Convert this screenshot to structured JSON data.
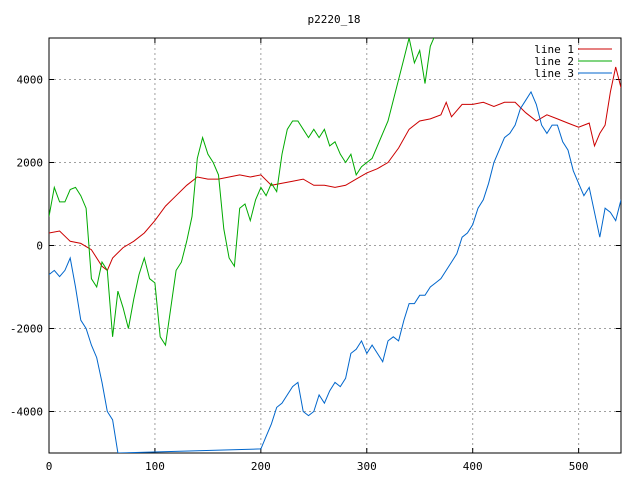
{
  "chart_data": {
    "type": "line",
    "title": "p2220_18",
    "xlabel": "",
    "ylabel": "",
    "xlim": [
      0,
      540
    ],
    "ylim": [
      -5000,
      5000
    ],
    "xticks": [
      0,
      100,
      200,
      300,
      400,
      500
    ],
    "yticks": [
      -4000,
      -2000,
      0,
      2000,
      4000
    ],
    "grid": true,
    "legend_position": "top-right",
    "series": [
      {
        "name": "line 1",
        "color": "#cc0000",
        "points": [
          [
            0,
            300
          ],
          [
            10,
            350
          ],
          [
            20,
            100
          ],
          [
            30,
            50
          ],
          [
            40,
            -100
          ],
          [
            50,
            -500
          ],
          [
            55,
            -600
          ],
          [
            60,
            -300
          ],
          [
            70,
            -50
          ],
          [
            80,
            100
          ],
          [
            90,
            300
          ],
          [
            100,
            600
          ],
          [
            110,
            950
          ],
          [
            120,
            1200
          ],
          [
            130,
            1450
          ],
          [
            140,
            1650
          ],
          [
            150,
            1600
          ],
          [
            160,
            1600
          ],
          [
            170,
            1650
          ],
          [
            180,
            1700
          ],
          [
            190,
            1650
          ],
          [
            200,
            1700
          ],
          [
            210,
            1450
          ],
          [
            220,
            1500
          ],
          [
            230,
            1550
          ],
          [
            240,
            1600
          ],
          [
            250,
            1450
          ],
          [
            260,
            1450
          ],
          [
            270,
            1400
          ],
          [
            280,
            1450
          ],
          [
            290,
            1600
          ],
          [
            300,
            1750
          ],
          [
            310,
            1850
          ],
          [
            320,
            2000
          ],
          [
            330,
            2350
          ],
          [
            340,
            2800
          ],
          [
            350,
            3000
          ],
          [
            360,
            3050
          ],
          [
            370,
            3150
          ],
          [
            375,
            3450
          ],
          [
            380,
            3100
          ],
          [
            390,
            3400
          ],
          [
            400,
            3400
          ],
          [
            410,
            3450
          ],
          [
            420,
            3350
          ],
          [
            430,
            3450
          ],
          [
            440,
            3450
          ],
          [
            450,
            3200
          ],
          [
            460,
            3000
          ],
          [
            470,
            3150
          ],
          [
            480,
            3050
          ],
          [
            490,
            2950
          ],
          [
            500,
            2850
          ],
          [
            510,
            2950
          ],
          [
            515,
            2400
          ],
          [
            520,
            2700
          ],
          [
            525,
            2900
          ],
          [
            530,
            3700
          ],
          [
            535,
            4300
          ],
          [
            540,
            3800
          ]
        ]
      },
      {
        "name": "line 2",
        "color": "#00aa00",
        "points": [
          [
            0,
            700
          ],
          [
            5,
            1400
          ],
          [
            10,
            1050
          ],
          [
            15,
            1050
          ],
          [
            20,
            1350
          ],
          [
            25,
            1400
          ],
          [
            30,
            1200
          ],
          [
            35,
            900
          ],
          [
            40,
            -800
          ],
          [
            45,
            -1000
          ],
          [
            50,
            -400
          ],
          [
            55,
            -600
          ],
          [
            60,
            -2200
          ],
          [
            65,
            -1100
          ],
          [
            70,
            -1500
          ],
          [
            75,
            -2000
          ],
          [
            80,
            -1300
          ],
          [
            85,
            -700
          ],
          [
            90,
            -300
          ],
          [
            95,
            -800
          ],
          [
            100,
            -900
          ],
          [
            105,
            -2200
          ],
          [
            110,
            -2400
          ],
          [
            115,
            -1500
          ],
          [
            120,
            -600
          ],
          [
            125,
            -400
          ],
          [
            130,
            100
          ],
          [
            135,
            700
          ],
          [
            140,
            2100
          ],
          [
            145,
            2600
          ],
          [
            150,
            2200
          ],
          [
            155,
            2000
          ],
          [
            160,
            1700
          ],
          [
            165,
            400
          ],
          [
            170,
            -300
          ],
          [
            175,
            -500
          ],
          [
            180,
            900
          ],
          [
            185,
            1000
          ],
          [
            190,
            600
          ],
          [
            195,
            1100
          ],
          [
            200,
            1400
          ],
          [
            205,
            1200
          ],
          [
            210,
            1500
          ],
          [
            215,
            1300
          ],
          [
            220,
            2200
          ],
          [
            225,
            2800
          ],
          [
            230,
            3000
          ],
          [
            235,
            3000
          ],
          [
            240,
            2800
          ],
          [
            245,
            2600
          ],
          [
            250,
            2800
          ],
          [
            255,
            2600
          ],
          [
            260,
            2800
          ],
          [
            265,
            2400
          ],
          [
            270,
            2500
          ],
          [
            275,
            2200
          ],
          [
            280,
            2000
          ],
          [
            285,
            2200
          ],
          [
            290,
            1700
          ],
          [
            295,
            1900
          ],
          [
            300,
            2000
          ],
          [
            305,
            2100
          ],
          [
            310,
            2400
          ],
          [
            315,
            2700
          ],
          [
            320,
            3000
          ],
          [
            325,
            3500
          ],
          [
            330,
            4000
          ],
          [
            335,
            4500
          ],
          [
            340,
            5000
          ],
          [
            345,
            4400
          ],
          [
            350,
            4700
          ],
          [
            355,
            3900
          ],
          [
            360,
            4800
          ],
          [
            365,
            5100
          ]
        ]
      },
      {
        "name": "line 3",
        "color": "#0066cc",
        "points": [
          [
            0,
            -700
          ],
          [
            5,
            -600
          ],
          [
            10,
            -750
          ],
          [
            15,
            -600
          ],
          [
            20,
            -300
          ],
          [
            25,
            -1000
          ],
          [
            30,
            -1800
          ],
          [
            35,
            -2000
          ],
          [
            40,
            -2400
          ],
          [
            45,
            -2700
          ],
          [
            50,
            -3300
          ],
          [
            55,
            -4000
          ],
          [
            60,
            -4200
          ],
          [
            65,
            -5000
          ],
          [
            200,
            -4900
          ],
          [
            205,
            -4600
          ],
          [
            210,
            -4300
          ],
          [
            215,
            -3900
          ],
          [
            220,
            -3800
          ],
          [
            225,
            -3600
          ],
          [
            230,
            -3400
          ],
          [
            235,
            -3300
          ],
          [
            240,
            -4000
          ],
          [
            245,
            -4100
          ],
          [
            250,
            -4000
          ],
          [
            255,
            -3600
          ],
          [
            260,
            -3800
          ],
          [
            265,
            -3500
          ],
          [
            270,
            -3300
          ],
          [
            275,
            -3400
          ],
          [
            280,
            -3200
          ],
          [
            285,
            -2600
          ],
          [
            290,
            -2500
          ],
          [
            295,
            -2300
          ],
          [
            300,
            -2600
          ],
          [
            305,
            -2400
          ],
          [
            310,
            -2600
          ],
          [
            315,
            -2800
          ],
          [
            320,
            -2300
          ],
          [
            325,
            -2200
          ],
          [
            330,
            -2300
          ],
          [
            335,
            -1800
          ],
          [
            340,
            -1400
          ],
          [
            345,
            -1400
          ],
          [
            350,
            -1200
          ],
          [
            355,
            -1200
          ],
          [
            360,
            -1000
          ],
          [
            365,
            -900
          ],
          [
            370,
            -800
          ],
          [
            375,
            -600
          ],
          [
            380,
            -400
          ],
          [
            385,
            -200
          ],
          [
            390,
            200
          ],
          [
            395,
            300
          ],
          [
            400,
            500
          ],
          [
            405,
            900
          ],
          [
            410,
            1100
          ],
          [
            415,
            1500
          ],
          [
            420,
            2000
          ],
          [
            425,
            2300
          ],
          [
            430,
            2600
          ],
          [
            435,
            2700
          ],
          [
            440,
            2900
          ],
          [
            445,
            3300
          ],
          [
            450,
            3500
          ],
          [
            455,
            3700
          ],
          [
            460,
            3400
          ],
          [
            465,
            2900
          ],
          [
            470,
            2700
          ],
          [
            475,
            2900
          ],
          [
            480,
            2900
          ],
          [
            485,
            2500
          ],
          [
            490,
            2300
          ],
          [
            495,
            1800
          ],
          [
            500,
            1500
          ],
          [
            505,
            1200
          ],
          [
            510,
            1400
          ],
          [
            515,
            800
          ],
          [
            520,
            200
          ],
          [
            525,
            900
          ],
          [
            530,
            800
          ],
          [
            535,
            600
          ],
          [
            540,
            1100
          ]
        ]
      }
    ]
  }
}
